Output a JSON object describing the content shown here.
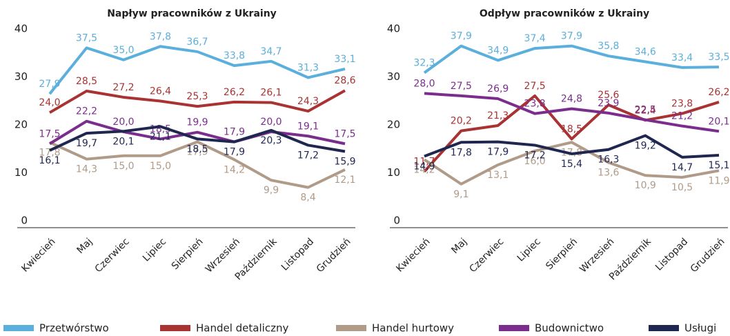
{
  "legend": [
    {
      "name": "Przetwórstwo",
      "color": "#5aafdc"
    },
    {
      "name": "Handel detaliczny",
      "color": "#a93232"
    },
    {
      "name": "Handel hurtowy",
      "color": "#b09a88"
    },
    {
      "name": "Budownictwo",
      "color": "#7b2d8e"
    },
    {
      "name": "Usługi",
      "color": "#1f2650"
    }
  ],
  "chart_data": [
    {
      "type": "line",
      "title": "Napływ pracowników z Ukrainy",
      "categories": [
        "Kwiecień",
        "Maj",
        "Czerwiec",
        "Lipiec",
        "Sierpień",
        "Wrzesień",
        "Październik",
        "Listopad",
        "Grudzień"
      ],
      "ylim": [
        0,
        40
      ],
      "yticks": [
        0,
        10,
        20,
        30,
        40
      ],
      "series": [
        {
          "values": [
            27.9,
            37.5,
            35.0,
            37.8,
            36.7,
            33.8,
            34.7,
            31.3,
            33.1
          ],
          "value_labels": [
            "27,9",
            "37,5",
            "35,0",
            "37,8",
            "36,7",
            "33,8",
            "34,7",
            "31,3",
            "33,1"
          ]
        },
        {
          "values": [
            24.0,
            28.5,
            27.2,
            26.4,
            25.3,
            26.2,
            26.1,
            24.3,
            28.6
          ],
          "value_labels": [
            "24,0",
            "28,5",
            "27,2",
            "26,4",
            "25,3",
            "26,2",
            "26,1",
            "24,3",
            "28,6"
          ]
        },
        {
          "values": [
            17.8,
            14.3,
            15.0,
            15.0,
            17.9,
            14.2,
            9.9,
            8.4,
            12.1
          ],
          "value_labels": [
            "17,8",
            "14,3",
            "15,0",
            "15,0",
            "17,9",
            "14,2",
            "9,9",
            "8,4",
            "12,1"
          ]
        },
        {
          "values": [
            17.5,
            22.2,
            20.0,
            18.5,
            19.9,
            17.9,
            20.0,
            19.1,
            17.5
          ],
          "value_labels": [
            "17,5",
            "22,2",
            "20,0",
            "18,5",
            "19,9",
            "17,9",
            "20,0",
            "19,1",
            "17,5"
          ]
        },
        {
          "values": [
            16.1,
            19.7,
            20.1,
            21.1,
            18.5,
            17.9,
            20.3,
            17.2,
            15.9
          ],
          "value_labels": [
            "16,1",
            "19,7",
            "20,1",
            "21,1",
            "18,5",
            "17,9",
            "20,3",
            "17,2",
            "15,9"
          ]
        }
      ]
    },
    {
      "type": "line",
      "title": "Odpływ pracowników z Ukrainy",
      "categories": [
        "Kwiecień",
        "Maj",
        "Czerwiec",
        "Lipiec",
        "Sierpień",
        "Wrzesień",
        "Październik",
        "Listopad",
        "Grudzień"
      ],
      "ylim": [
        0,
        40
      ],
      "yticks": [
        0,
        10,
        20,
        30,
        40
      ],
      "series": [
        {
          "values": [
            32.3,
            37.9,
            34.9,
            37.4,
            37.9,
            35.8,
            34.6,
            33.4,
            33.5
          ],
          "value_labels": [
            "32,3",
            "37,9",
            "34,9",
            "37,4",
            "37,9",
            "35,8",
            "34,6",
            "33,4",
            "33,5"
          ]
        },
        {
          "values": [
            11.7,
            20.2,
            21.3,
            27.5,
            18.5,
            25.6,
            22.4,
            23.8,
            26.2
          ],
          "value_labels": [
            "11,7",
            "20,2",
            "21,3",
            "27,5",
            "18,5",
            "25,6",
            "22,4",
            "23,8",
            "26,2"
          ]
        },
        {
          "values": [
            14.2,
            9.1,
            13.1,
            16.0,
            17.8,
            13.6,
            10.9,
            10.5,
            11.9
          ],
          "value_labels": [
            "14,2",
            "9,1",
            "13,1",
            "16,0",
            "17,8",
            "13,6",
            "10,9",
            "10,5",
            "11,9"
          ]
        },
        {
          "values": [
            28.0,
            27.5,
            26.9,
            23.8,
            24.8,
            23.9,
            22.5,
            21.2,
            20.1
          ],
          "value_labels": [
            "28,0",
            "27,5",
            "26,9",
            "23,8",
            "24,8",
            "23,9",
            "22,5",
            "21,2",
            "20,1"
          ]
        },
        {
          "values": [
            14.9,
            17.8,
            17.9,
            17.2,
            15.4,
            16.3,
            19.2,
            14.7,
            15.1
          ],
          "value_labels": [
            "14,9",
            "17,8",
            "17,9",
            "17,2",
            "15,4",
            "16,3",
            "19,2",
            "14,7",
            "15,1"
          ]
        }
      ]
    }
  ]
}
